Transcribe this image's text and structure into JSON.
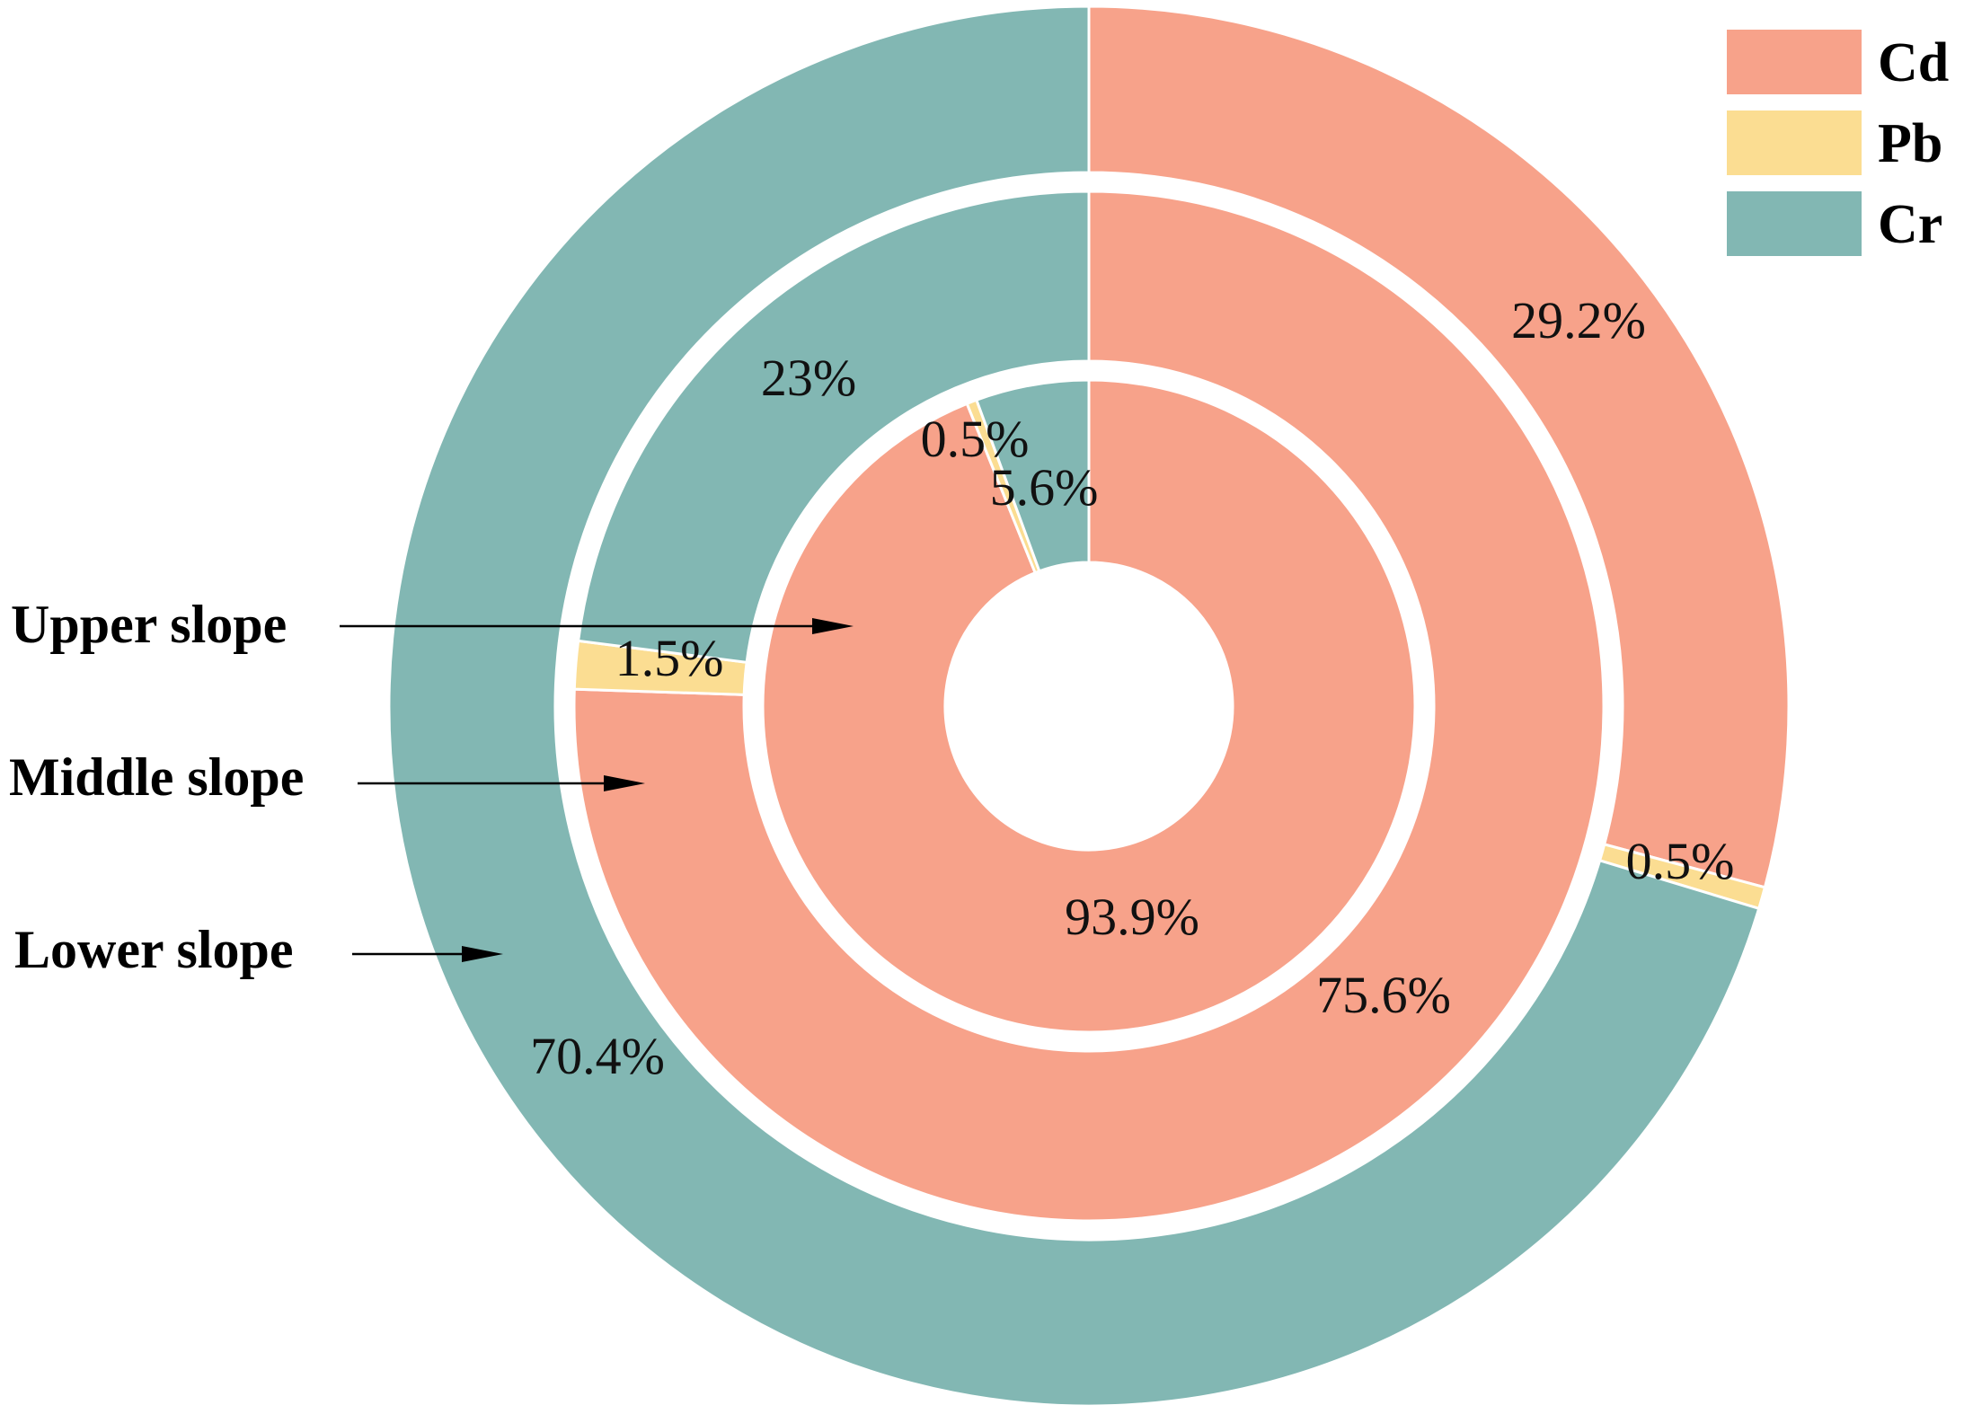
{
  "chart_data": {
    "type": "pie",
    "subtype": "nested-donut",
    "categories": [
      "Cd",
      "Pb",
      "Cr"
    ],
    "colors": {
      "Cd": "#F7A28A",
      "Pb": "#FBDD92",
      "Cr": "#82B7B3"
    },
    "legend": {
      "placement": "top-right",
      "entries": [
        {
          "name": "Cd",
          "color": "#F7A28A"
        },
        {
          "name": "Pb",
          "color": "#FBDD92"
        },
        {
          "name": "Cr",
          "color": "#82B7B3"
        }
      ]
    },
    "series": [
      {
        "name": "Upper slope",
        "ring": "inner",
        "values": [
          93.9,
          0.5,
          5.6
        ],
        "labels": [
          "93.9%",
          "0.5%",
          "5.6%"
        ]
      },
      {
        "name": "Middle slope",
        "ring": "middle",
        "values": [
          75.6,
          1.5,
          23
        ],
        "labels": [
          "75.6%",
          "1.5%",
          "23%"
        ]
      },
      {
        "name": "Lower slope",
        "ring": "outer",
        "values": [
          29.2,
          0.5,
          70.4
        ],
        "labels": [
          "29.2%",
          "0.5%",
          "70.4%"
        ]
      }
    ],
    "start_angle": "12 o'clock",
    "direction": "clockwise"
  }
}
